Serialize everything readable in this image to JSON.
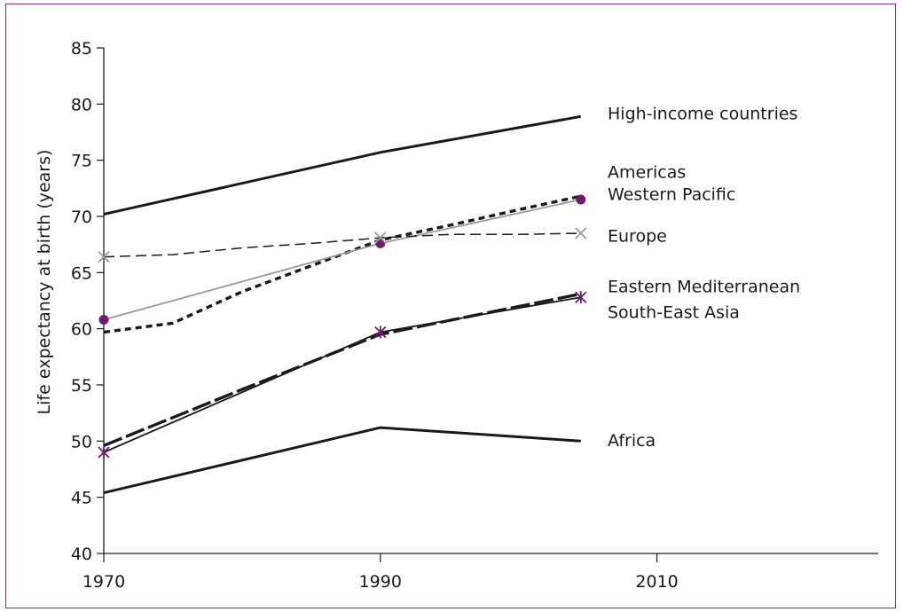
{
  "chart_data": {
    "type": "line",
    "title": "",
    "xlabel": "",
    "ylabel": "Life expectancy at birth (years)",
    "xlim": [
      1970,
      2026
    ],
    "ylim": [
      40,
      85
    ],
    "x_ticks": [
      1970,
      1990,
      2010
    ],
    "y_ticks": [
      40,
      45,
      50,
      55,
      60,
      65,
      70,
      75,
      80,
      85
    ],
    "grid": false,
    "legend": "direct labels at right end of lines",
    "series": [
      {
        "name": "High-income countries",
        "x": [
          1970,
          1990,
          2004.5
        ],
        "y": [
          70.2,
          75.7,
          78.9
        ],
        "color": "#1a1a1a",
        "style": "solid-thick",
        "marker": "none"
      },
      {
        "name": "Americas",
        "x": [
          1970,
          1975,
          1980,
          1985,
          1990,
          1995,
          2000,
          2004.5
        ],
        "y": [
          59.7,
          60.5,
          63.3,
          65.6,
          67.9,
          69.2,
          70.6,
          71.8
        ],
        "color": "#1a1a1a",
        "style": "short-dash-thick",
        "marker": "none"
      },
      {
        "name": "Western Pacific",
        "x": [
          1970,
          1990,
          2004.5
        ],
        "y": [
          60.8,
          67.6,
          71.5
        ],
        "color": "#999999",
        "style": "solid-thin",
        "marker": "dot-purple"
      },
      {
        "name": "Europe",
        "x": [
          1970,
          1975,
          1980,
          1985,
          1990,
          1995,
          2000,
          2004.5
        ],
        "y": [
          66.4,
          66.6,
          67.2,
          67.6,
          68.1,
          68.4,
          68.4,
          68.5
        ],
        "color": "#1a1a1a",
        "style": "dash-thin",
        "marker": "x-grey"
      },
      {
        "name": "Eastern Mediterranean",
        "x": [
          1970,
          1980,
          1990,
          2004.5
        ],
        "y": [
          49.6,
          54.6,
          59.5,
          63.1
        ],
        "color": "#1a1a1a",
        "style": "long-dash-thick",
        "marker": "none"
      },
      {
        "name": "South-East Asia",
        "x": [
          1970,
          1990,
          2004.5
        ],
        "y": [
          49.0,
          59.7,
          62.8
        ],
        "color": "#1a1a1a",
        "style": "solid-thin",
        "marker": "asterisk-purple"
      },
      {
        "name": "Africa",
        "x": [
          1970,
          1990,
          2004.5
        ],
        "y": [
          45.4,
          51.2,
          50.0
        ],
        "color": "#1a1a1a",
        "style": "solid-thick",
        "marker": "none"
      }
    ],
    "label_positions_y": {
      "High-income countries": 79.2,
      "Americas": 74.0,
      "Western Pacific": 72.0,
      "Europe": 68.3,
      "Eastern Mediterranean": 63.8,
      "South-East Asia": 61.5,
      "Africa": 50.1
    }
  },
  "colors": {
    "frame": "#8a2a7a",
    "axis": "#1a1a1a",
    "marker_purple": "#6e1a6e",
    "marker_grey": "#9a9a9a"
  }
}
